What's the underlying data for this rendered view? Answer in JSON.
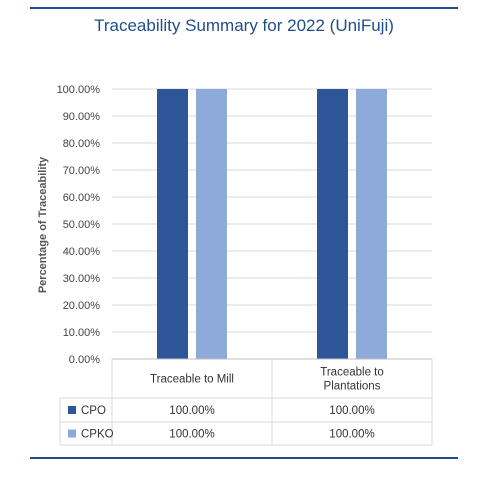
{
  "chart_data": {
    "type": "bar",
    "title": "Traceability Summary for 2022 (UniFuji)",
    "ylabel": "Percentage of Traceability",
    "xlabel": "",
    "ylim": [
      0,
      100
    ],
    "y_ticks": [
      "0.00%",
      "10.00%",
      "20.00%",
      "30.00%",
      "40.00%",
      "50.00%",
      "60.00%",
      "70.00%",
      "80.00%",
      "90.00%",
      "100.00%"
    ],
    "categories": [
      "Traceable to Mill",
      "Traceable to Plantations"
    ],
    "category_lines": [
      [
        "Traceable to Mill"
      ],
      [
        "Traceable to",
        "Plantations"
      ]
    ],
    "series": [
      {
        "name": "CPO",
        "values": [
          100,
          100
        ],
        "labels": [
          "100.00%",
          "100.00%"
        ],
        "color": "#2e5597"
      },
      {
        "name": "CPKO",
        "values": [
          100,
          100
        ],
        "labels": [
          "100.00%",
          "100.00%"
        ],
        "color": "#8eaadb"
      }
    ],
    "grid": true,
    "legend": "data table below chart"
  }
}
